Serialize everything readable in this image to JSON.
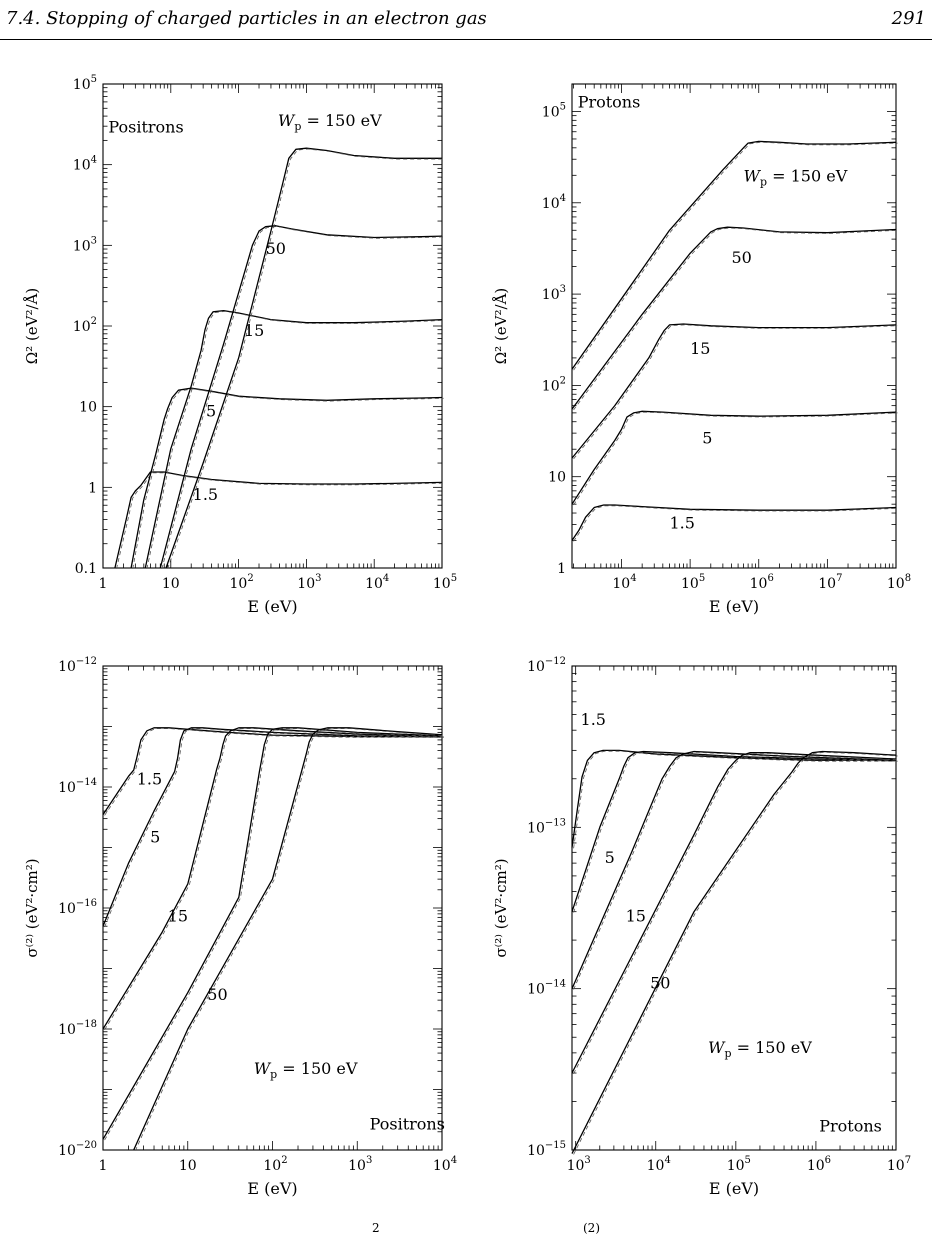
{
  "header": {
    "title": "7.4.  Stopping of charged particles in an electron gas",
    "page_number": "291"
  },
  "caption_fragments": [
    "2",
    "(2)"
  ],
  "chart_data": [
    {
      "type": "line",
      "panel": "top-left",
      "label": "Positrons",
      "xlabel": "E    (eV)",
      "ylabel": "Ω²   (eV²/Å)",
      "xscale": "log",
      "yscale": "log",
      "xlim": [
        1,
        100000
      ],
      "ylim": [
        0.1,
        100000
      ],
      "x_ticks": [
        {
          "v": 1,
          "t": "1"
        },
        {
          "v": 10,
          "t": "10"
        },
        {
          "v": 100,
          "b": "10",
          "e": "2"
        },
        {
          "v": 1000,
          "b": "10",
          "e": "3"
        },
        {
          "v": 10000,
          "b": "10",
          "e": "4"
        },
        {
          "v": 100000,
          "b": "10",
          "e": "5"
        }
      ],
      "y_ticks": [
        {
          "v": 0.1,
          "t": "0.1"
        },
        {
          "v": 1,
          "t": "1"
        },
        {
          "v": 10,
          "t": "10"
        },
        {
          "v": 100,
          "b": "10",
          "e": "2"
        },
        {
          "v": 1000,
          "b": "10",
          "e": "3"
        },
        {
          "v": 10000,
          "b": "10",
          "e": "4"
        },
        {
          "v": 100000,
          "b": "10",
          "e": "5"
        }
      ],
      "series": [
        {
          "name": "1.5",
          "x": [
            1.5,
            2.2,
            2.6,
            3,
            3.6,
            5,
            8,
            15,
            40,
            200,
            1000,
            5000,
            20000,
            100000
          ],
          "y": [
            0.1,
            0.4,
            0.75,
            0.9,
            1.05,
            1.55,
            1.55,
            1.4,
            1.25,
            1.12,
            1.1,
            1.1,
            1.12,
            1.15
          ]
        },
        {
          "name": "5",
          "x": [
            2.6,
            4,
            6,
            8,
            9,
            10.5,
            13,
            20,
            40,
            100,
            400,
            2000,
            10000,
            50000,
            100000
          ],
          "y": [
            0.1,
            0.7,
            2.6,
            7,
            9.5,
            13,
            16,
            17,
            15.5,
            13.5,
            12.5,
            12,
            12.5,
            12.8,
            13
          ]
        },
        {
          "name": "15",
          "x": [
            4.2,
            10,
            20,
            28,
            32,
            36,
            42,
            60,
            100,
            300,
            1000,
            5000,
            30000,
            100000
          ],
          "y": [
            0.1,
            3,
            18,
            50,
            90,
            125,
            150,
            155,
            145,
            120,
            110,
            110,
            115,
            120
          ]
        },
        {
          "name": "50",
          "x": [
            7,
            20,
            60,
            130,
            160,
            200,
            250,
            350,
            600,
            2000,
            10000,
            50000,
            100000
          ],
          "y": [
            0.1,
            3,
            60,
            550,
            1000,
            1500,
            1700,
            1750,
            1600,
            1350,
            1250,
            1280,
            1300
          ]
        },
        {
          "name": "W_p = 150 eV",
          "x": [
            8.5,
            30,
            100,
            300,
            450,
            550,
            700,
            1000,
            2000,
            5000,
            20000,
            100000
          ],
          "y": [
            0.1,
            2,
            40,
            1500,
            6000,
            12000,
            15500,
            16000,
            15000,
            13000,
            12000,
            12000
          ]
        }
      ],
      "annotations": [
        {
          "text": "Positrons",
          "x": 1.2,
          "y": 25000
        },
        {
          "text": "1.5",
          "x": 21,
          "y": 0.7
        },
        {
          "text": "5",
          "x": 33,
          "y": 7.5
        },
        {
          "text": "15",
          "x": 120,
          "y": 75
        },
        {
          "text": "50",
          "x": 250,
          "y": 780
        },
        {
          "subject": "W",
          "sub": "p",
          "rest": " = 150 eV",
          "x": 380,
          "y": 30000
        }
      ]
    },
    {
      "type": "line",
      "panel": "top-right",
      "label": "Protons",
      "xlabel": "E    (eV)",
      "ylabel": "Ω²   (eV²/Å)",
      "xscale": "log",
      "yscale": "log",
      "xlim": [
        1900,
        100000000
      ],
      "ylim": [
        1,
        200000
      ],
      "x_ticks": [
        {
          "v": 10000,
          "b": "10",
          "e": "4"
        },
        {
          "v": 100000,
          "b": "10",
          "e": "5"
        },
        {
          "v": 1000000,
          "b": "10",
          "e": "6"
        },
        {
          "v": 10000000,
          "b": "10",
          "e": "7"
        },
        {
          "v": 100000000,
          "b": "10",
          "e": "8"
        }
      ],
      "y_ticks": [
        {
          "v": 1,
          "t": "1"
        },
        {
          "v": 10,
          "t": "10"
        },
        {
          "v": 100,
          "b": "10",
          "e": "2"
        },
        {
          "v": 1000,
          "b": "10",
          "e": "3"
        },
        {
          "v": 10000,
          "b": "10",
          "e": "4"
        },
        {
          "v": 100000,
          "b": "10",
          "e": "5"
        }
      ],
      "series": [
        {
          "name": "1.5",
          "x": [
            1900,
            2400,
            3000,
            4000,
            5500,
            8000,
            20000,
            100000,
            1000000,
            10000000,
            100000000
          ],
          "y": [
            2,
            2.6,
            3.6,
            4.6,
            4.9,
            4.9,
            4.7,
            4.4,
            4.3,
            4.3,
            4.6
          ]
        },
        {
          "name": "5",
          "x": [
            1900,
            4000,
            8000,
            10000,
            12000,
            15000,
            20000,
            40000,
            200000,
            1000000,
            10000000,
            100000000
          ],
          "y": [
            5,
            12,
            25,
            33,
            45,
            50,
            52,
            51,
            47,
            46,
            47,
            51
          ]
        },
        {
          "name": "15",
          "x": [
            1900,
            8000,
            25000,
            35000,
            42000,
            50000,
            80000,
            200000,
            1000000,
            10000000,
            100000000
          ],
          "y": [
            16,
            60,
            200,
            320,
            400,
            460,
            470,
            450,
            430,
            430,
            460
          ]
        },
        {
          "name": "50",
          "x": [
            1900,
            20000,
            100000,
            200000,
            250000,
            350000,
            600000,
            2000000,
            10000000,
            100000000
          ],
          "y": [
            55,
            600,
            2800,
            4800,
            5200,
            5400,
            5300,
            4800,
            4700,
            5100
          ]
        },
        {
          "name": "W_p = 150 eV",
          "x": [
            1900,
            50000,
            300000,
            600000,
            700000,
            1000000,
            2000000,
            5000000,
            20000000,
            100000000
          ],
          "y": [
            150,
            5000,
            23000,
            40000,
            45000,
            47000,
            46000,
            44000,
            44000,
            46000
          ]
        }
      ],
      "annotations": [
        {
          "text": "Protons",
          "x": 2300,
          "y": 110000
        },
        {
          "text": "1.5",
          "x": 50000,
          "y": 2.7
        },
        {
          "text": "5",
          "x": 150000,
          "y": 23
        },
        {
          "text": "15",
          "x": 100000,
          "y": 220
        },
        {
          "text": "50",
          "x": 400000,
          "y": 2200
        },
        {
          "subject": "W",
          "sub": "p",
          "rest": " = 150 eV",
          "x": 600000,
          "y": 17000
        }
      ]
    },
    {
      "type": "line",
      "panel": "bottom-left",
      "label": "Positrons",
      "xlabel": "E    (eV)",
      "ylabel": "σ⁽²⁾   (eV²·cm²)",
      "xscale": "log",
      "yscale": "log",
      "xlim": [
        1,
        10000
      ],
      "ylim": [
        1e-20,
        1e-12
      ],
      "x_ticks": [
        {
          "v": 1,
          "t": "1"
        },
        {
          "v": 10,
          "t": "10"
        },
        {
          "v": 100,
          "b": "10",
          "e": "2"
        },
        {
          "v": 1000,
          "b": "10",
          "e": "3"
        },
        {
          "v": 10000,
          "b": "10",
          "e": "4"
        }
      ],
      "y_ticks": [
        {
          "v": 1e-20,
          "b": "10",
          "e": "−20"
        },
        {
          "v": 1e-18,
          "b": "10",
          "e": "−18"
        },
        {
          "v": 1e-16,
          "b": "10",
          "e": "−16"
        },
        {
          "v": 1e-14,
          "b": "10",
          "e": "−14"
        },
        {
          "v": 1e-12,
          "b": "10",
          "e": "−12"
        }
      ],
      "series": [
        {
          "name": "1.5",
          "x": [
            1,
            2,
            2.3,
            2.5,
            2.8,
            3.3,
            4,
            6,
            10,
            30,
            100,
            1000,
            10000
          ],
          "y": [
            3.5e-15,
            1.5e-14,
            1.9e-14,
            3e-14,
            6e-14,
            8.5e-14,
            9.5e-14,
            9.5e-14,
            9e-14,
            8e-14,
            7.2e-14,
            6.8e-14,
            6.8e-14
          ]
        },
        {
          "name": "5",
          "x": [
            1,
            2,
            4,
            7,
            7.6,
            8.2,
            9,
            11,
            15,
            25,
            100,
            1000,
            10000
          ],
          "y": [
            5e-17,
            5.5e-16,
            4e-15,
            1.8e-14,
            3e-14,
            6e-14,
            8.5e-14,
            9.5e-14,
            9.5e-14,
            9e-14,
            8e-14,
            7e-14,
            6.8e-14
          ]
        },
        {
          "name": "15",
          "x": [
            1,
            5,
            10,
            22,
            24,
            26,
            28,
            32,
            40,
            60,
            200,
            1000,
            10000
          ],
          "y": [
            1e-18,
            4e-17,
            2.5e-16,
            2e-14,
            3e-14,
            5e-14,
            7e-14,
            8.5e-14,
            9.5e-14,
            9.5e-14,
            8.5e-14,
            7.5e-14,
            6.8e-14
          ]
        },
        {
          "name": "50",
          "x": [
            1,
            10,
            40,
            70,
            75,
            80,
            88,
            100,
            130,
            200,
            1000,
            10000
          ],
          "y": [
            1.5e-20,
            4e-18,
            1.5e-16,
            1.8e-14,
            3e-14,
            5e-14,
            7.5e-14,
            9e-14,
            9.5e-14,
            9.5e-14,
            8e-14,
            7e-14
          ]
        },
        {
          "name": "W_p = 150 eV",
          "x": [
            2.3,
            10,
            100,
            220,
            250,
            270,
            300,
            350,
            450,
            800,
            3000,
            10000
          ],
          "y": [
            1e-20,
            1e-18,
            3e-16,
            1.8e-14,
            3.5e-14,
            5.5e-14,
            7.5e-14,
            8.8e-14,
            9.5e-14,
            9.5e-14,
            8.2e-14,
            7.3e-14
          ]
        }
      ],
      "annotations": [
        {
          "text": "1.5",
          "x": 2.5,
          "y": 1.1e-14
        },
        {
          "text": "5",
          "x": 3.6,
          "y": 1.2e-15
        },
        {
          "text": "15",
          "x": 5.8,
          "y": 6e-17
        },
        {
          "text": "50",
          "x": 17,
          "y": 3e-18
        },
        {
          "subject": "W",
          "sub": "p",
          "rest": " = 150 eV",
          "x": 60,
          "y": 1.8e-19
        },
        {
          "text": "Positrons",
          "x": 1400,
          "y": 2.2e-20
        }
      ]
    },
    {
      "type": "line",
      "panel": "bottom-right",
      "label": "Protons",
      "xlabel": "E    (eV)",
      "ylabel": "σ⁽²⁾   (eV²·cm²)",
      "xscale": "log",
      "yscale": "log",
      "xlim": [
        900,
        10000000
      ],
      "ylim": [
        1e-15,
        1e-12
      ],
      "x_ticks": [
        {
          "v": 1000,
          "b": "10",
          "e": "3"
        },
        {
          "v": 10000,
          "b": "10",
          "e": "4"
        },
        {
          "v": 100000,
          "b": "10",
          "e": "5"
        },
        {
          "v": 1000000,
          "b": "10",
          "e": "6"
        },
        {
          "v": 10000000,
          "b": "10",
          "e": "7"
        }
      ],
      "y_ticks": [
        {
          "v": 1e-15,
          "b": "10",
          "e": "−15"
        },
        {
          "v": 1e-14,
          "b": "10",
          "e": "−14"
        },
        {
          "v": 1e-13,
          "b": "10",
          "e": "−13"
        },
        {
          "v": 1e-12,
          "b": "10",
          "e": "−12"
        }
      ],
      "series": [
        {
          "name": "1.5",
          "x": [
            900,
            1050,
            1200,
            1400,
            1700,
            2200,
            3500,
            10000,
            100000,
            1000000,
            10000000
          ],
          "y": [
            7.5e-14,
            1.3e-13,
            2.05e-13,
            2.6e-13,
            2.9e-13,
            3e-13,
            3e-13,
            2.85e-13,
            2.7e-13,
            2.6e-13,
            2.6e-13
          ]
        },
        {
          "name": "5",
          "x": [
            900,
            2000,
            3500,
            4000,
            4500,
            5500,
            7000,
            15000,
            100000,
            1000000,
            10000000
          ],
          "y": [
            3e-14,
            1e-13,
            2e-13,
            2.4e-13,
            2.7e-13,
            2.9e-13,
            2.95e-13,
            2.9e-13,
            2.75e-13,
            2.65e-13,
            2.6e-13
          ]
        },
        {
          "name": "15",
          "x": [
            900,
            5000,
            12000,
            15000,
            18000,
            22000,
            30000,
            60000,
            500000,
            10000000
          ],
          "y": [
            1e-14,
            7e-14,
            2e-13,
            2.4e-13,
            2.7e-13,
            2.85e-13,
            2.95e-13,
            2.9e-13,
            2.75e-13,
            2.6e-13
          ]
        },
        {
          "name": "50",
          "x": [
            900,
            30000,
            60000,
            80000,
            100000,
            120000,
            150000,
            250000,
            1000000,
            10000000
          ],
          "y": [
            3e-15,
            9e-14,
            1.8e-13,
            2.3e-13,
            2.6e-13,
            2.8e-13,
            2.9e-13,
            2.9e-13,
            2.8e-13,
            2.65e-13
          ]
        },
        {
          "name": "W_p = 150 eV",
          "x": [
            900,
            30000,
            300000,
            500000,
            600000,
            700000,
            900000,
            1200000,
            3000000,
            10000000
          ],
          "y": [
            9.5e-16,
            3e-14,
            1.6e-13,
            2.2e-13,
            2.5e-13,
            2.7e-13,
            2.9e-13,
            2.95e-13,
            2.9e-13,
            2.8e-13
          ]
        }
      ],
      "annotations": [
        {
          "text": "1.5",
          "x": 1150,
          "y": 4.3e-13
        },
        {
          "text": "5",
          "x": 2300,
          "y": 6e-14
        },
        {
          "text": "15",
          "x": 4200,
          "y": 2.6e-14
        },
        {
          "text": "50",
          "x": 8500,
          "y": 1e-14
        },
        {
          "subject": "W",
          "sub": "p",
          "rest": " = 150 eV",
          "x": 45000,
          "y": 4e-15
        },
        {
          "text": "Protons",
          "x": 1100000,
          "y": 1.3e-15
        }
      ]
    }
  ]
}
